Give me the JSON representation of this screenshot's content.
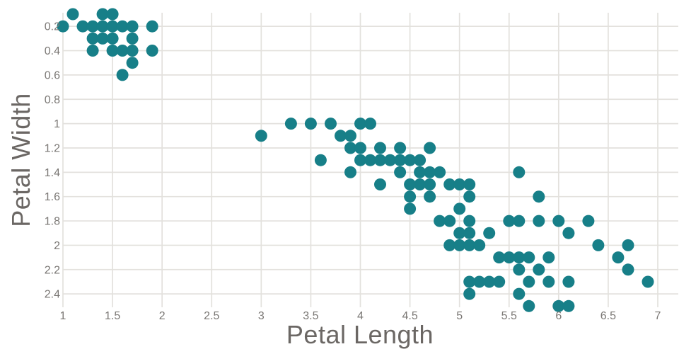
{
  "chart_data": {
    "type": "scatter",
    "title": "",
    "xlabel": "Petal Length",
    "ylabel": "Petal Width",
    "x_ticks": [
      {
        "v": 1,
        "label": "1"
      },
      {
        "v": 1.5,
        "label": "1.5"
      },
      {
        "v": 2,
        "label": "2"
      },
      {
        "v": 2.5,
        "label": "2.5"
      },
      {
        "v": 3,
        "label": "3"
      },
      {
        "v": 3.5,
        "label": "3.5"
      },
      {
        "v": 4,
        "label": "4"
      },
      {
        "v": 4.5,
        "label": "4.5"
      },
      {
        "v": 5,
        "label": "5"
      },
      {
        "v": 5.5,
        "label": "5.5"
      },
      {
        "v": 6,
        "label": "6"
      },
      {
        "v": 6.5,
        "label": "6.5"
      },
      {
        "v": 7,
        "label": "7"
      }
    ],
    "y_ticks": [
      {
        "v": 0.2,
        "label": "0.2"
      },
      {
        "v": 0.4,
        "label": "0.4"
      },
      {
        "v": 0.6,
        "label": "0.6"
      },
      {
        "v": 0.8,
        "label": "0.8"
      },
      {
        "v": 1,
        "label": "1"
      },
      {
        "v": 1.2,
        "label": "1.2"
      },
      {
        "v": 1.4,
        "label": "1.4"
      },
      {
        "v": 1.6,
        "label": "1.6"
      },
      {
        "v": 1.8,
        "label": "1.8"
      },
      {
        "v": 2,
        "label": "2"
      },
      {
        "v": 2.2,
        "label": "2.2"
      },
      {
        "v": 2.4,
        "label": "2.4"
      }
    ],
    "x_range": [
      1,
      7.21
    ],
    "y_range": [
      0.1,
      2.5
    ],
    "y_axis_inverted": true,
    "grid": true,
    "legend_position": "none",
    "marker_radius": 8.5,
    "colors": {
      "marker": "#177f88",
      "grid": "#e3e1dd",
      "tick_label": "#7a7774",
      "axis_title": "#6b6764",
      "background": "#ffffff"
    },
    "points": [
      [
        1.1,
        0.1
      ],
      [
        1.4,
        0.1
      ],
      [
        1.5,
        0.1
      ],
      [
        1.0,
        0.2
      ],
      [
        1.2,
        0.2
      ],
      [
        1.3,
        0.2
      ],
      [
        1.4,
        0.2
      ],
      [
        1.5,
        0.2
      ],
      [
        1.6,
        0.2
      ],
      [
        1.7,
        0.2
      ],
      [
        1.9,
        0.2
      ],
      [
        1.3,
        0.3
      ],
      [
        1.4,
        0.3
      ],
      [
        1.5,
        0.3
      ],
      [
        1.7,
        0.3
      ],
      [
        1.3,
        0.4
      ],
      [
        1.5,
        0.4
      ],
      [
        1.6,
        0.4
      ],
      [
        1.7,
        0.4
      ],
      [
        1.9,
        0.4
      ],
      [
        1.7,
        0.5
      ],
      [
        1.6,
        0.6
      ],
      [
        3.3,
        1.0
      ],
      [
        3.5,
        1.0
      ],
      [
        3.7,
        1.0
      ],
      [
        4.0,
        1.0
      ],
      [
        4.1,
        1.0
      ],
      [
        3.0,
        1.1
      ],
      [
        3.8,
        1.1
      ],
      [
        3.9,
        1.1
      ],
      [
        3.9,
        1.2
      ],
      [
        4.0,
        1.2
      ],
      [
        4.2,
        1.2
      ],
      [
        4.4,
        1.2
      ],
      [
        4.7,
        1.2
      ],
      [
        3.6,
        1.3
      ],
      [
        4.0,
        1.3
      ],
      [
        4.1,
        1.3
      ],
      [
        4.2,
        1.3
      ],
      [
        4.3,
        1.3
      ],
      [
        4.4,
        1.3
      ],
      [
        4.5,
        1.3
      ],
      [
        4.6,
        1.3
      ],
      [
        3.9,
        1.4
      ],
      [
        4.4,
        1.4
      ],
      [
        4.6,
        1.4
      ],
      [
        4.7,
        1.4
      ],
      [
        4.8,
        1.4
      ],
      [
        5.6,
        1.4
      ],
      [
        4.2,
        1.5
      ],
      [
        4.5,
        1.5
      ],
      [
        4.6,
        1.5
      ],
      [
        4.7,
        1.5
      ],
      [
        4.9,
        1.5
      ],
      [
        5.0,
        1.5
      ],
      [
        5.1,
        1.5
      ],
      [
        4.5,
        1.6
      ],
      [
        4.7,
        1.6
      ],
      [
        5.1,
        1.6
      ],
      [
        5.8,
        1.6
      ],
      [
        4.5,
        1.7
      ],
      [
        5.0,
        1.7
      ],
      [
        4.8,
        1.8
      ],
      [
        4.9,
        1.8
      ],
      [
        5.1,
        1.8
      ],
      [
        5.5,
        1.8
      ],
      [
        5.6,
        1.8
      ],
      [
        5.8,
        1.8
      ],
      [
        6.0,
        1.8
      ],
      [
        6.3,
        1.8
      ],
      [
        5.0,
        1.9
      ],
      [
        5.1,
        1.9
      ],
      [
        5.3,
        1.9
      ],
      [
        6.1,
        1.9
      ],
      [
        4.9,
        2.0
      ],
      [
        5.0,
        2.0
      ],
      [
        5.1,
        2.0
      ],
      [
        5.2,
        2.0
      ],
      [
        6.4,
        2.0
      ],
      [
        6.7,
        2.0
      ],
      [
        5.4,
        2.1
      ],
      [
        5.5,
        2.1
      ],
      [
        5.6,
        2.1
      ],
      [
        5.7,
        2.1
      ],
      [
        5.9,
        2.1
      ],
      [
        6.6,
        2.1
      ],
      [
        5.6,
        2.2
      ],
      [
        5.8,
        2.2
      ],
      [
        6.7,
        2.2
      ],
      [
        5.1,
        2.3
      ],
      [
        5.2,
        2.3
      ],
      [
        5.3,
        2.3
      ],
      [
        5.4,
        2.3
      ],
      [
        5.7,
        2.3
      ],
      [
        5.9,
        2.3
      ],
      [
        6.1,
        2.3
      ],
      [
        6.9,
        2.3
      ],
      [
        5.1,
        2.4
      ],
      [
        5.6,
        2.4
      ],
      [
        5.7,
        2.5
      ],
      [
        6.0,
        2.5
      ],
      [
        6.1,
        2.5
      ]
    ]
  }
}
